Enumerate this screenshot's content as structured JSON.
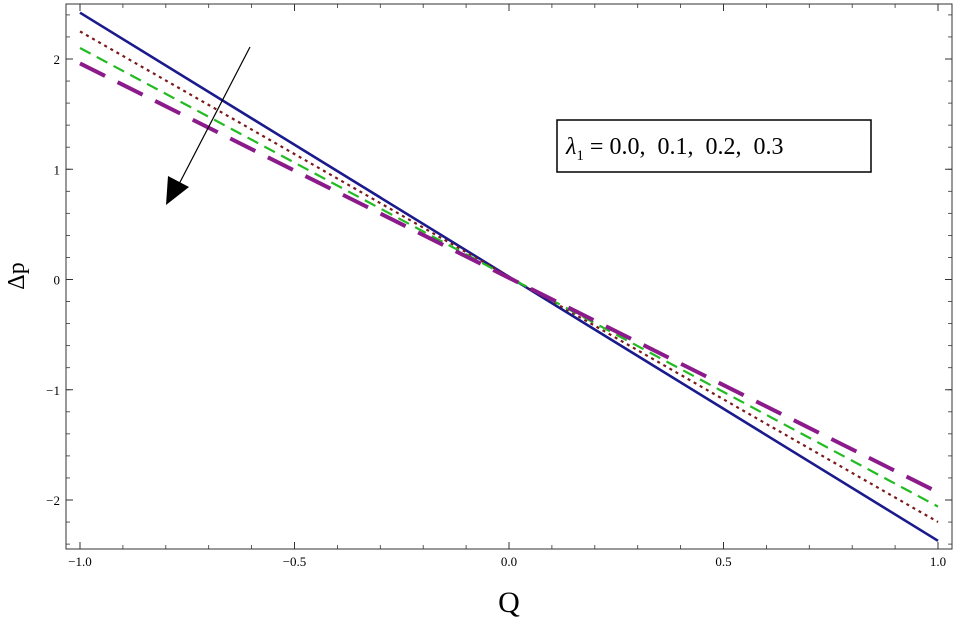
{
  "chart_data": {
    "type": "line",
    "title": "",
    "xlabel": "Q",
    "ylabel": "Δp",
    "xlim": [
      -1.0,
      1.0
    ],
    "ylim": [
      -2.45,
      2.45
    ],
    "xticks": [
      -1.0,
      -0.5,
      0.0,
      0.5,
      1.0
    ],
    "xtick_labels": [
      "−1.0",
      "−0.5",
      "0.0",
      "0.5",
      "1.0"
    ],
    "yticks": [
      -2,
      -1,
      0,
      1,
      2
    ],
    "ytick_labels": [
      "−2",
      "−1",
      "0",
      "1",
      "2"
    ],
    "grid": false,
    "legend": {
      "placement": "right-upper",
      "symbol": "λ",
      "subscript": "1",
      "text": " = 0.0,  0.1,  0.2,  0.3"
    },
    "annotation": "arrow indicating increasing λ1",
    "series": [
      {
        "x": [
          -1.0,
          1.0
        ],
        "y": [
          2.42,
          -2.37
        ],
        "color": "#1a1a8c",
        "style": "solid"
      },
      {
        "x": [
          -1.0,
          1.0
        ],
        "y": [
          2.25,
          -2.2
        ],
        "color": "#7a1a1a",
        "style": "dotted"
      },
      {
        "x": [
          -1.0,
          1.0
        ],
        "y": [
          2.1,
          -2.06
        ],
        "color": "#22bb22",
        "style": "dashed"
      },
      {
        "x": [
          -1.0,
          1.0
        ],
        "y": [
          1.96,
          -1.93
        ],
        "color": "#8b1a8b",
        "style": "longdash"
      }
    ]
  }
}
